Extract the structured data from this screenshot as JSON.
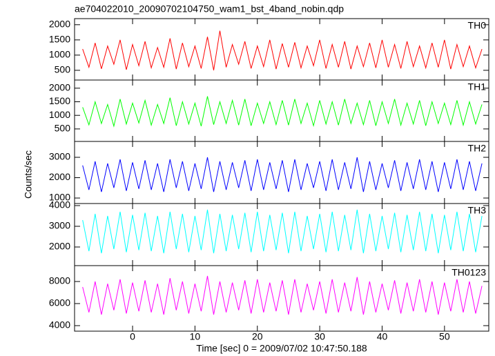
{
  "chart_data": {
    "type": "line",
    "title": "ae704022010_20090702104750_wam1_bst_4band_nobin.qdp",
    "xlabel": "Time [sec] 0 = 2009/07/02 10:47:50.188",
    "ylabel": "Counts/sec",
    "xlim": [
      -9.3,
      57.1
    ],
    "xticks": [
      0,
      10,
      20,
      30,
      40,
      50
    ],
    "x": [
      -8,
      -7,
      -6,
      -5,
      -4,
      -3,
      -2,
      -1,
      0,
      1,
      2,
      3,
      4,
      5,
      6,
      7,
      8,
      9,
      10,
      11,
      12,
      13,
      14,
      15,
      16,
      17,
      18,
      19,
      20,
      21,
      22,
      23,
      24,
      25,
      26,
      27,
      28,
      29,
      30,
      31,
      32,
      33,
      34,
      35,
      36,
      37,
      38,
      39,
      40,
      41,
      42,
      43,
      44,
      45,
      46,
      47,
      48,
      49,
      50,
      51,
      52,
      53,
      54,
      55,
      56
    ],
    "series": [
      {
        "name": "TH0",
        "color": "#ff0000",
        "ylim": [
          180,
          2200
        ],
        "yticks": [
          500,
          1000,
          1500,
          2000
        ],
        "values": [
          1200,
          600,
          1400,
          550,
          1300,
          700,
          1500,
          520,
          1350,
          650,
          1450,
          580,
          1250,
          600,
          1550,
          540,
          1400,
          620,
          1300,
          560,
          1600,
          500,
          1800,
          600,
          1350,
          700,
          1450,
          560,
          1300,
          620,
          1500,
          540,
          1380,
          600,
          1420,
          580,
          1300,
          650,
          1500,
          560,
          1350,
          600,
          1450,
          540,
          1300,
          620,
          1400,
          580,
          1500,
          600,
          1350,
          560,
          1450,
          620,
          1300,
          580,
          1400,
          600,
          1500,
          540,
          1350,
          620,
          1300,
          580,
          1200
        ]
      },
      {
        "name": "TH1",
        "color": "#00ff00",
        "ylim": [
          40,
          2300
        ],
        "yticks": [
          500,
          1000,
          1500,
          2000
        ],
        "values": [
          1300,
          650,
          1500,
          700,
          1400,
          600,
          1600,
          680,
          1450,
          720,
          1550,
          640,
          1400,
          700,
          1650,
          620,
          1500,
          680,
          1450,
          600,
          1700,
          660,
          1500,
          700,
          1550,
          640,
          1600,
          620,
          1450,
          700,
          1500,
          660,
          1550,
          640,
          1600,
          700,
          1450,
          620,
          1550,
          680,
          1500,
          640,
          1600,
          700,
          1450,
          660,
          1550,
          620,
          1500,
          700,
          1600,
          640,
          1450,
          680,
          1550,
          620,
          1500,
          700,
          1450,
          660,
          1550,
          640,
          1500,
          680,
          1400
        ]
      },
      {
        "name": "TH2",
        "color": "#0000ff",
        "ylim": [
          730,
          3780
        ],
        "yticks": [
          1000,
          2000,
          3000
        ],
        "values": [
          2600,
          1400,
          2800,
          1300,
          2700,
          1500,
          2900,
          1350,
          2750,
          1450,
          2850,
          1400,
          2700,
          1300,
          2900,
          1500,
          2800,
          1350,
          2700,
          1450,
          3000,
          1300,
          2800,
          1400,
          2750,
          1500,
          2850,
          1350,
          2900,
          1400,
          2750,
          1450,
          2850,
          1300,
          2900,
          1400,
          2700,
          1500,
          2800,
          1350,
          2900,
          1400,
          2750,
          1450,
          3000,
          1300,
          2800,
          1400,
          2700,
          1500,
          2850,
          1350,
          2750,
          1450,
          2900,
          1400,
          2800,
          1300,
          2750,
          1450,
          2900,
          1400,
          2800,
          1350,
          2700
        ]
      },
      {
        "name": "TH3",
        "color": "#00ffff",
        "ylim": [
          1100,
          4100
        ],
        "yticks": [
          2000,
          3000,
          4000
        ],
        "values": [
          3300,
          1800,
          3600,
          1700,
          3500,
          1900,
          3700,
          1750,
          3550,
          1850,
          3650,
          1800,
          3500,
          1700,
          3700,
          1900,
          3600,
          1750,
          3500,
          1850,
          3800,
          1700,
          3600,
          1800,
          3550,
          1900,
          3650,
          1750,
          3700,
          1800,
          3550,
          1850,
          3650,
          1700,
          3700,
          1800,
          3500,
          1900,
          3600,
          1750,
          3700,
          1800,
          3550,
          1850,
          3800,
          1700,
          3600,
          1800,
          3500,
          1900,
          3650,
          1750,
          3550,
          1850,
          3700,
          1800,
          3600,
          1700,
          3550,
          1850,
          3700,
          1800,
          3600,
          1750,
          3500
        ]
      },
      {
        "name": "TH0123",
        "color": "#ff00ff",
        "ylim": [
          3500,
          9440
        ],
        "yticks": [
          4000,
          6000,
          8000
        ],
        "values": [
          7500,
          5200,
          8000,
          5000,
          7800,
          5400,
          8200,
          5100,
          7900,
          5300,
          8100,
          5200,
          7800,
          5000,
          8300,
          5400,
          8000,
          5100,
          7800,
          5300,
          8500,
          5000,
          8000,
          5200,
          7900,
          5400,
          8100,
          5100,
          8200,
          5200,
          7900,
          5300,
          8100,
          5000,
          8200,
          5200,
          7800,
          5400,
          8000,
          5100,
          8200,
          5200,
          7900,
          5300,
          8400,
          5000,
          8000,
          5200,
          7800,
          5400,
          8100,
          5100,
          7900,
          5300,
          8200,
          5200,
          8000,
          5000,
          7900,
          5300,
          8200,
          5200,
          8000,
          5100,
          7600
        ]
      }
    ]
  }
}
